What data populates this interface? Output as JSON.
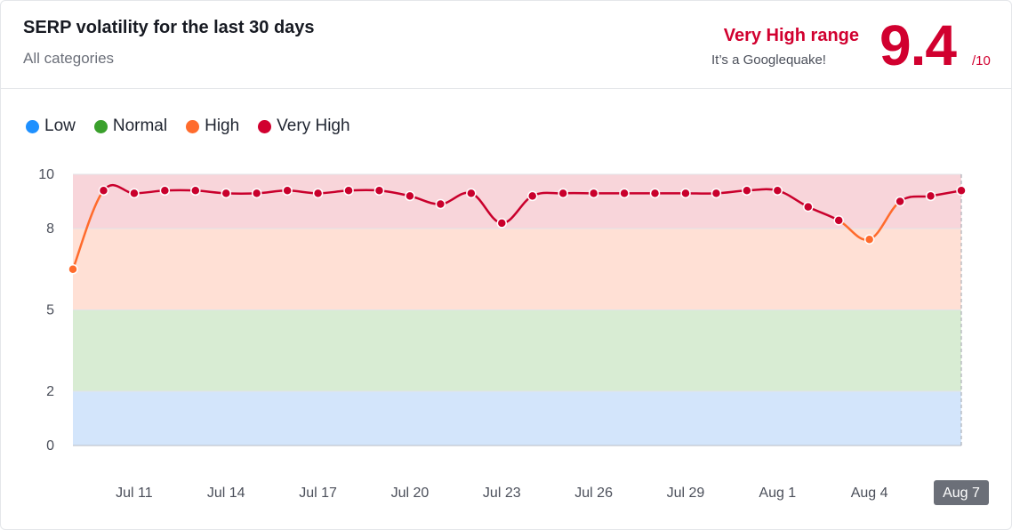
{
  "header": {
    "title": "SERP volatility for the last 30 days",
    "subtitle": "All categories",
    "range_label": "Very High range",
    "range_note": "It’s a Googlequake!",
    "score": "9.4",
    "score_denominator": "/10"
  },
  "legend": [
    {
      "label": "Low",
      "color": "#1e90ff"
    },
    {
      "label": "Normal",
      "color": "#3aa02c"
    },
    {
      "label": "High",
      "color": "#ff6b2c"
    },
    {
      "label": "Very High",
      "color": "#d1002f"
    }
  ],
  "chart_data": {
    "type": "line",
    "title": "",
    "xlabel": "",
    "ylabel": "",
    "ylim": [
      0,
      10
    ],
    "y_ticks": [
      "0",
      "2",
      "5",
      "8",
      "10"
    ],
    "bands": [
      {
        "name": "Low",
        "from": 0,
        "to": 2,
        "color": "#d3e5fb"
      },
      {
        "name": "Normal",
        "from": 2,
        "to": 5,
        "color": "#d8ecd3"
      },
      {
        "name": "High",
        "from": 5,
        "to": 8,
        "color": "#ffe0d5"
      },
      {
        "name": "Very High",
        "from": 8,
        "to": 10,
        "color": "#f8d5da"
      }
    ],
    "x_ticks": [
      "Jul 11",
      "Jul 14",
      "Jul 17",
      "Jul 20",
      "Jul 23",
      "Jul 26",
      "Jul 29",
      "Aug 1",
      "Aug 4",
      "Aug 7"
    ],
    "highlighted_tick": "Aug 7",
    "x": [
      "Jul 9",
      "Jul 10",
      "Jul 11",
      "Jul 12",
      "Jul 13",
      "Jul 14",
      "Jul 15",
      "Jul 16",
      "Jul 17",
      "Jul 18",
      "Jul 19",
      "Jul 20",
      "Jul 21",
      "Jul 22",
      "Jul 23",
      "Jul 24",
      "Jul 25",
      "Jul 26",
      "Jul 27",
      "Jul 28",
      "Jul 29",
      "Jul 30",
      "Jul 31",
      "Aug 1",
      "Aug 2",
      "Aug 3",
      "Aug 4",
      "Aug 5",
      "Aug 6",
      "Aug 7"
    ],
    "series": [
      {
        "values": [
          6.5,
          9.4,
          9.3,
          9.4,
          9.4,
          9.3,
          9.3,
          9.4,
          9.3,
          9.4,
          9.4,
          9.2,
          8.9,
          9.3,
          8.2,
          9.2,
          9.3,
          9.3,
          9.3,
          9.3,
          9.3,
          9.3,
          9.4,
          9.4,
          8.8,
          8.3,
          7.6,
          9.0,
          9.2,
          9.4
        ]
      }
    ]
  }
}
